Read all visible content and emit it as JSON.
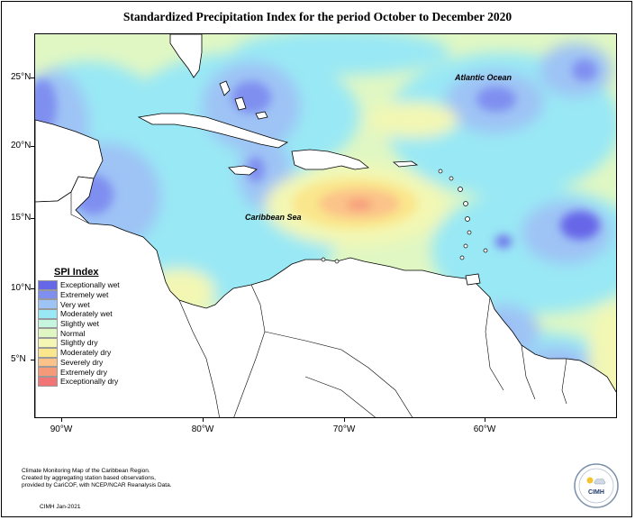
{
  "title": "Standardized Precipitation Index for the period October to December 2020",
  "map": {
    "lat_labels": [
      "25°N",
      "20°N",
      "15°N",
      "10°N",
      "5°N"
    ],
    "lon_labels": [
      "90°W",
      "80°W",
      "70°W",
      "60°W"
    ],
    "labels": {
      "atlantic": "Atlantic Ocean",
      "caribbean": "Caribbean Sea"
    },
    "colors": {
      "land": "#ffffff",
      "exceptionally_wet": "#6666e8",
      "extremely_wet": "#7f8ff0",
      "very_wet": "#9ec3f5",
      "moderately_wet": "#99e8f5",
      "slightly_wet": "#c6f5e0",
      "normal": "#e0f7c3",
      "slightly_dry": "#f3f7b3",
      "moderately_dry": "#fae68c",
      "severely_dry": "#fbc389",
      "extremely_dry": "#f59a79",
      "exceptionally_dry": "#f27575"
    }
  },
  "legend": {
    "title": "SPI Index",
    "items": [
      {
        "label": "Exceptionally wet",
        "color": "#6666e8"
      },
      {
        "label": "Extremely wet",
        "color": "#7f8ff0"
      },
      {
        "label": "Very wet",
        "color": "#9ec3f5"
      },
      {
        "label": "Moderately wet",
        "color": "#99e8f5"
      },
      {
        "label": "Slightly wet",
        "color": "#c6f5e0"
      },
      {
        "label": "Normal",
        "color": "#e0f7c3"
      },
      {
        "label": "Slightly dry",
        "color": "#f3f7b3"
      },
      {
        "label": "Moderately dry",
        "color": "#fae68c"
      },
      {
        "label": "Severely dry",
        "color": "#fbc389"
      },
      {
        "label": "Extremely dry",
        "color": "#f59a79"
      },
      {
        "label": "Exceptionally dry",
        "color": "#f27575"
      }
    ]
  },
  "footer": {
    "lines": [
      "Climate Monitoring Map of the Caribbean Region.",
      "Created by aggregating station based observations,",
      "provided by CariCOF, with NCEP/NCAR Reanalysis Data."
    ],
    "date": "CIMH Jan-2021"
  },
  "logo": {
    "text": "CIMH",
    "icon": "cimh-logo-icon"
  }
}
